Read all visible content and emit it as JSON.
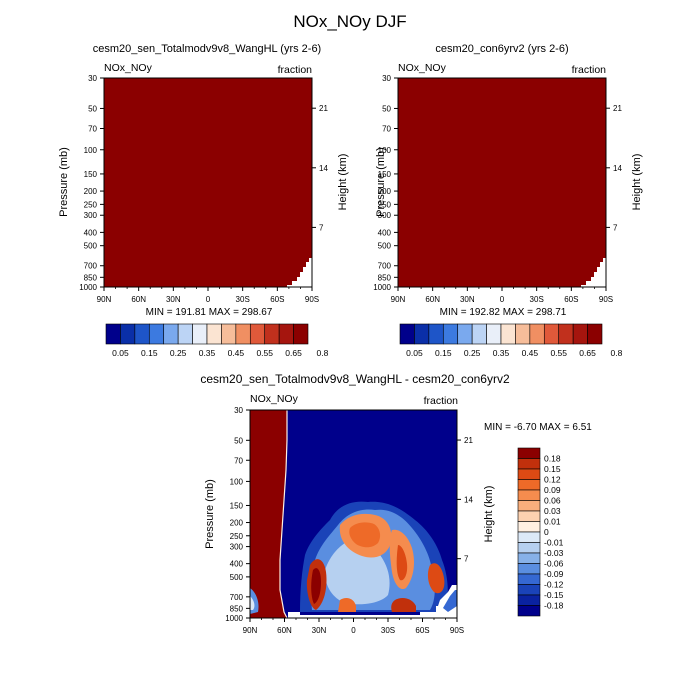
{
  "title": "NOx_NOy DJF",
  "colors": {
    "dark_red": "#8b0000",
    "diff_blue": "#00008b"
  },
  "panels": {
    "left": {
      "title": "cesm20_sen_Totalmodv9v8_WangHL (yrs 2-6)",
      "variable": "NOx_NOy",
      "units": "fraction",
      "minmax": "MIN = 191.81   MAX = 298.67"
    },
    "right": {
      "title": "cesm20_con6yrv2 (yrs 2-6)",
      "variable": "NOx_NOy",
      "units": "fraction",
      "minmax": "MIN = 192.82   MAX = 298.71"
    },
    "diff": {
      "title": "cesm20_sen_Totalmodv9v8_WangHL - cesm20_con6yrv2",
      "variable": "NOx_NOy",
      "units": "fraction",
      "minmax": "MIN =  -6.70  MAX =   6.51"
    }
  },
  "chart_data": [
    {
      "type": "heatmap",
      "title": "cesm20_sen_Totalmodv9v8_WangHL (yrs 2-6)",
      "ylabel": "Pressure (mb)",
      "ylabel_right": "Height (km)",
      "x_ticks": [
        "90N",
        "60N",
        "30N",
        "0",
        "30S",
        "60S",
        "90S"
      ],
      "y_ticks": [
        "30",
        "50",
        "70",
        "100",
        "150",
        "200",
        "250",
        "300",
        "400",
        "500",
        "700",
        "850",
        "1000"
      ],
      "y_ticks_right": [
        "21",
        "14",
        "7"
      ],
      "y_scale": "log",
      "ylim": [
        1000,
        30
      ],
      "colorbar_labels": [
        "0.05",
        "0.15",
        "0.25",
        "0.35",
        "0.45",
        "0.55",
        "0.65",
        "0.8"
      ],
      "colorbar_colors": [
        "#00008b",
        "#0a2fa8",
        "#1e55c8",
        "#3c7ae0",
        "#7aa9ee",
        "#bcd4f5",
        "#e9eff9",
        "#fbe4d2",
        "#f6bd9a",
        "#f08f62",
        "#e0593a",
        "#c1301d",
        "#a5150e",
        "#8b0000"
      ],
      "min": 191.81,
      "max": 298.67
    },
    {
      "type": "heatmap",
      "title": "cesm20_con6yrv2 (yrs 2-6)",
      "ylabel": "Pressure (mb)",
      "ylabel_right": "Height (km)",
      "x_ticks": [
        "90N",
        "60N",
        "30N",
        "0",
        "30S",
        "60S",
        "90S"
      ],
      "y_ticks": [
        "30",
        "50",
        "70",
        "100",
        "150",
        "200",
        "250",
        "300",
        "400",
        "500",
        "700",
        "850",
        "1000"
      ],
      "y_ticks_right": [
        "21",
        "14",
        "7"
      ],
      "y_scale": "log",
      "ylim": [
        1000,
        30
      ],
      "colorbar_labels": [
        "0.05",
        "0.15",
        "0.25",
        "0.35",
        "0.45",
        "0.55",
        "0.65",
        "0.8"
      ],
      "colorbar_colors": [
        "#00008b",
        "#0a2fa8",
        "#1e55c8",
        "#3c7ae0",
        "#7aa9ee",
        "#bcd4f5",
        "#e9eff9",
        "#fbe4d2",
        "#f6bd9a",
        "#f08f62",
        "#e0593a",
        "#c1301d",
        "#a5150e",
        "#8b0000"
      ],
      "min": 192.82,
      "max": 298.71
    },
    {
      "type": "heatmap",
      "title": "cesm20_sen_Totalmodv9v8_WangHL - cesm20_con6yrv2",
      "ylabel": "Pressure (mb)",
      "ylabel_right": "Height (km)",
      "x_ticks": [
        "90N",
        "60N",
        "30N",
        "0",
        "30S",
        "60S",
        "90S"
      ],
      "y_ticks": [
        "30",
        "50",
        "70",
        "100",
        "150",
        "200",
        "250",
        "300",
        "400",
        "500",
        "700",
        "850",
        "1000"
      ],
      "y_ticks_right": [
        "21",
        "14",
        "7"
      ],
      "y_scale": "log",
      "ylim": [
        1000,
        30
      ],
      "colorbar_labels": [
        "0.18",
        "0.15",
        "0.12",
        "0.09",
        "0.06",
        "0.03",
        "0.01",
        "0",
        "-0.01",
        "-0.03",
        "-0.06",
        "-0.09",
        "-0.12",
        "-0.15",
        "-0.18"
      ],
      "colorbar_colors": [
        "#8b0000",
        "#c1300c",
        "#dd4a14",
        "#ee6a28",
        "#f58c4e",
        "#f9ae7c",
        "#fcd1b0",
        "#fff0e2",
        "#dce9f7",
        "#b6d0f0",
        "#87b1e8",
        "#5a8ee0",
        "#3568d2",
        "#1a43b8",
        "#0a22a0",
        "#00008b"
      ],
      "min": -6.7,
      "max": 6.51
    }
  ]
}
